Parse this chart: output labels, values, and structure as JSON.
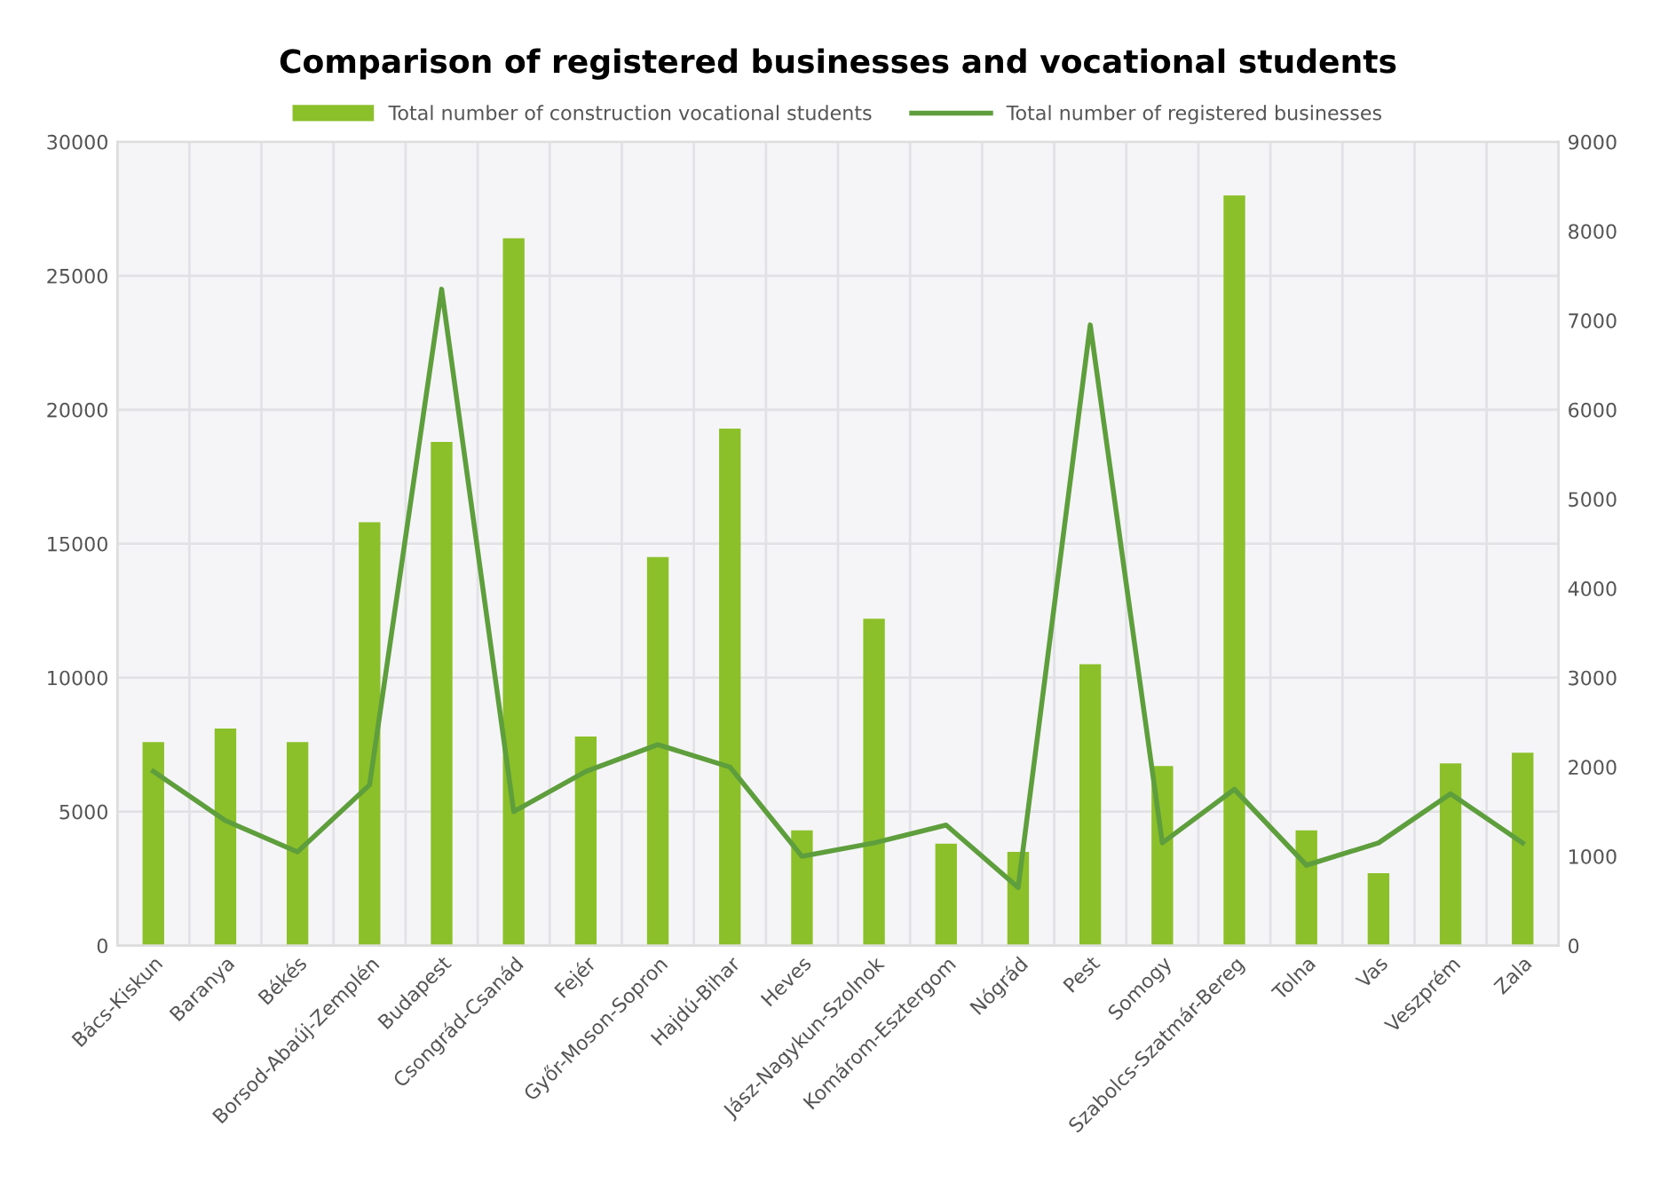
{
  "chart_data": {
    "type": "bar",
    "title": "Comparison of registered businesses and vocational students",
    "categories": [
      "Bács-Kiskun",
      "Baranya",
      "Békés",
      "Borsod-Abaúj-Zemplén",
      "Budapest",
      "Csongrád-Csanád",
      "Fejér",
      "Győr-Moson-Sopron",
      "Hajdú-Bihar",
      "Heves",
      "Jász-Nagykun-Szolnok",
      "Komárom-Esztergom",
      "Nógrád",
      "Pest",
      "Somogy",
      "Szabolcs-Szatmár-Bereg",
      "Tolna",
      "Vas",
      "Veszprém",
      "Zala"
    ],
    "series": [
      {
        "name": "Total number of construction vocational students",
        "color": "#8cc02a",
        "values": [
          7600,
          8100,
          7600,
          15800,
          18800,
          26400,
          7800,
          14500,
          19300,
          4300,
          12200,
          3800,
          3500,
          10500,
          6700,
          28000,
          4300,
          2700,
          6800,
          7200
        ]
      },
      {
        "name": "Total number of registered businesses",
        "type": "line",
        "axis": "y2",
        "color": "#5e9e3c",
        "values": [
          1950,
          1400,
          1050,
          1800,
          7350,
          1500,
          1950,
          2250,
          2000,
          1000,
          1150,
          1350,
          650,
          6950,
          1150,
          1750,
          900,
          1150,
          1700,
          1150
        ]
      }
    ],
    "ylim": [
      0,
      30000
    ],
    "yticks": [
      0,
      5000,
      10000,
      15000,
      20000,
      25000,
      30000
    ],
    "y2lim": [
      0,
      9000
    ],
    "y2ticks": [
      0,
      1000,
      2000,
      3000,
      4000,
      5000,
      6000,
      7000,
      8000,
      9000
    ],
    "grid": true,
    "legend": "top"
  }
}
